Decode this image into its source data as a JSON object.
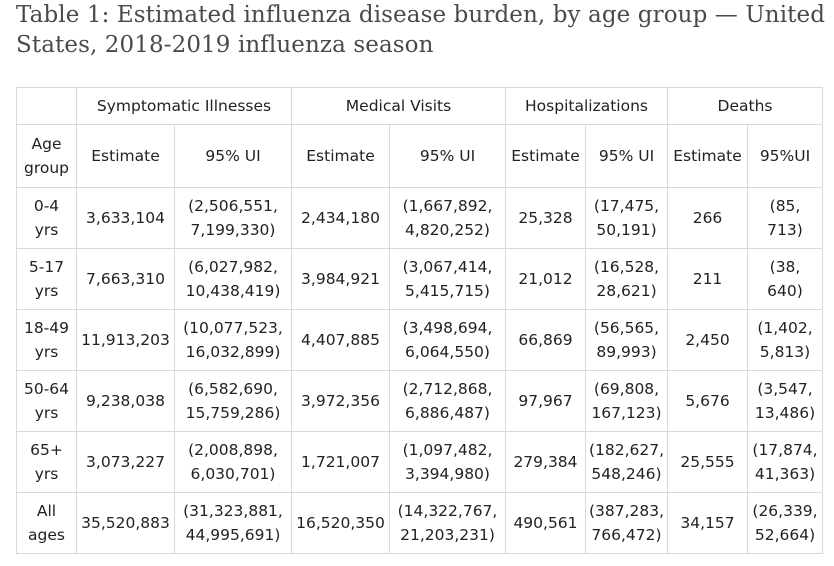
{
  "caption": "Table 1: Estimated influenza disease burden, by age group — United States, 2018-2019 influenza season",
  "groups": [
    "Symptomatic Illnesses",
    "Medical Visits",
    "Hospitalizations",
    "Deaths"
  ],
  "subheaders": {
    "age_line1": "Age",
    "age_line2": "group",
    "cols": [
      "Estimate",
      "95% UI",
      "Estimate",
      "95% UI",
      "Estimate",
      "95% UI",
      "Estimate",
      "95%UI"
    ]
  },
  "rows": [
    {
      "age": [
        "0-4",
        "yrs"
      ],
      "cells": [
        "3,633,104",
        [
          "(2,506,551,",
          "7,199,330)"
        ],
        "2,434,180",
        [
          "(1,667,892,",
          "4,820,252)"
        ],
        "25,328",
        [
          "(17,475,",
          "50,191)"
        ],
        "266",
        [
          "(85,",
          "713)"
        ]
      ]
    },
    {
      "age": [
        "5-17",
        "yrs"
      ],
      "cells": [
        "7,663,310",
        [
          "(6,027,982,",
          "10,438,419)"
        ],
        "3,984,921",
        [
          "(3,067,414,",
          "5,415,715)"
        ],
        "21,012",
        [
          "(16,528,",
          "28,621)"
        ],
        "211",
        [
          "(38,",
          "640)"
        ]
      ]
    },
    {
      "age": [
        "18-49",
        "yrs"
      ],
      "cells": [
        "11,913,203",
        [
          "(10,077,523,",
          "16,032,899)"
        ],
        "4,407,885",
        [
          "(3,498,694,",
          "6,064,550)"
        ],
        "66,869",
        [
          "(56,565,",
          "89,993)"
        ],
        "2,450",
        [
          "(1,402,",
          "5,813)"
        ]
      ]
    },
    {
      "age": [
        "50-64",
        "yrs"
      ],
      "cells": [
        "9,238,038",
        [
          "(6,582,690,",
          "15,759,286)"
        ],
        "3,972,356",
        [
          "(2,712,868,",
          "6,886,487)"
        ],
        "97,967",
        [
          "(69,808,",
          "167,123)"
        ],
        "5,676",
        [
          "(3,547,",
          "13,486)"
        ]
      ]
    },
    {
      "age": [
        "65+",
        "yrs"
      ],
      "cells": [
        "3,073,227",
        [
          "(2,008,898,",
          "6,030,701)"
        ],
        "1,721,007",
        [
          "(1,097,482,",
          "3,394,980)"
        ],
        "279,384",
        [
          "(182,627,",
          "548,246)"
        ],
        "25,555",
        [
          "(17,874,",
          "41,363)"
        ]
      ]
    },
    {
      "age": [
        "All",
        "ages"
      ],
      "cells": [
        "35,520,883",
        [
          "(31,323,881,",
          "44,995,691)"
        ],
        "16,520,350",
        [
          "(14,322,767,",
          "21,203,231)"
        ],
        "490,561",
        [
          "(387,283,",
          "766,472)"
        ],
        "34,157",
        [
          "(26,339,",
          "52,664)"
        ]
      ]
    }
  ]
}
